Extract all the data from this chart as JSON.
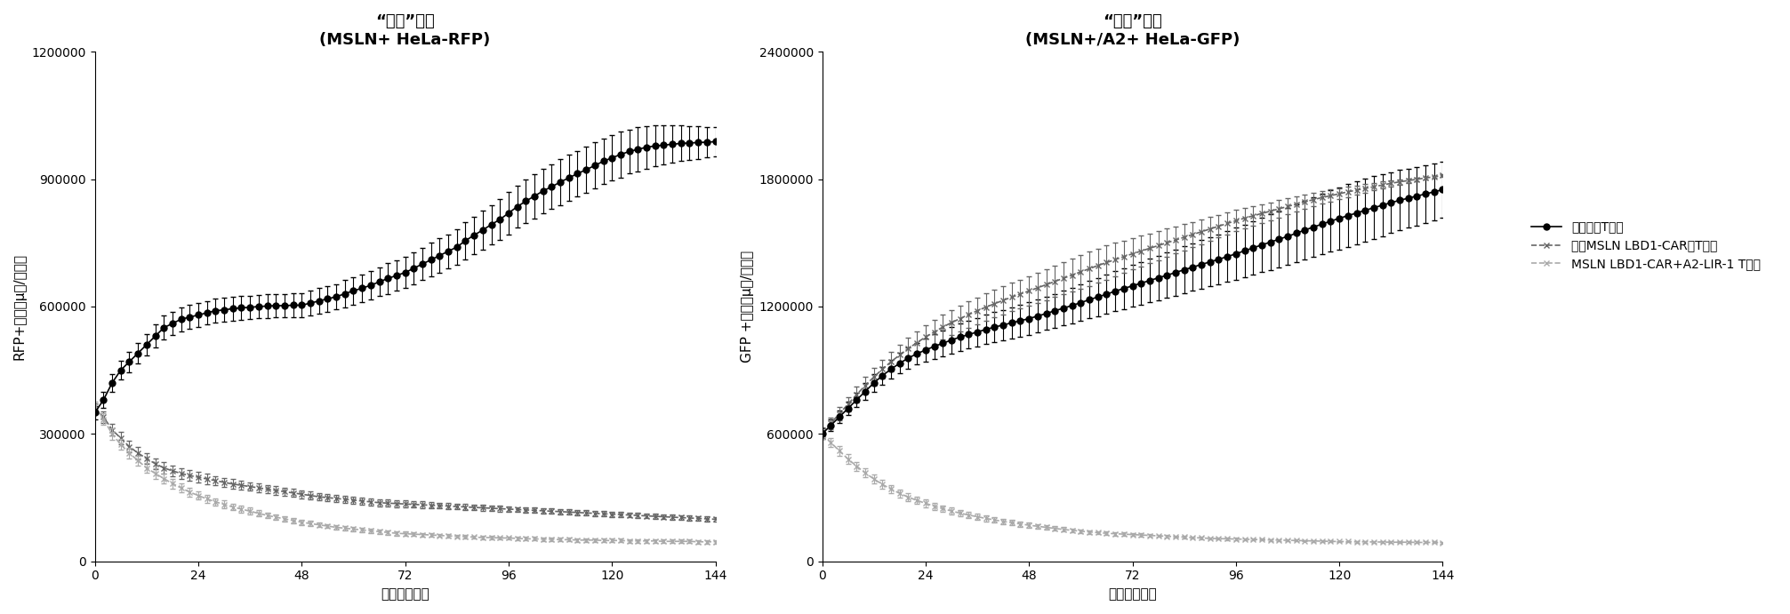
{
  "plot1_title_line1": "“肿瘤”细胞",
  "plot1_title_line2": "(MSLN+ HeLa-RFP)",
  "plot2_title_line1": "“正常”细胞",
  "plot2_title_line2": "(MSLN+/A2+ HeLa-GFP)",
  "plot1_ylabel": "RFP+面积（μ㎡/图像）",
  "plot2_ylabel": "GFP +面积（μ㎡/图像）",
  "xlabel": "时间（小时）",
  "plot1_ylim": [
    0,
    1200000
  ],
  "plot2_ylim": [
    0,
    2400000
  ],
  "xlim": [
    0,
    144
  ],
  "xticks": [
    0,
    24,
    48,
    72,
    96,
    120,
    144
  ],
  "plot1_yticks": [
    0,
    300000,
    600000,
    900000,
    1200000
  ],
  "plot2_yticks": [
    0,
    600000,
    1200000,
    1800000,
    2400000
  ],
  "legend_labels": [
    "未转导的T细胞",
    "仅含MSLN LBD1-CAR的T细胞",
    "MSLN LBD1-CAR+A2-LIR-1 T细胞"
  ],
  "time": [
    0,
    2,
    4,
    6,
    8,
    10,
    12,
    14,
    16,
    18,
    20,
    22,
    24,
    26,
    28,
    30,
    32,
    34,
    36,
    38,
    40,
    42,
    44,
    46,
    48,
    50,
    52,
    54,
    56,
    58,
    60,
    62,
    64,
    66,
    68,
    70,
    72,
    74,
    76,
    78,
    80,
    82,
    84,
    86,
    88,
    90,
    92,
    94,
    96,
    98,
    100,
    102,
    104,
    106,
    108,
    110,
    112,
    114,
    116,
    118,
    120,
    122,
    124,
    126,
    128,
    130,
    132,
    134,
    136,
    138,
    140,
    142,
    144
  ],
  "p1_ctrl": [
    350000,
    380000,
    420000,
    450000,
    470000,
    490000,
    510000,
    530000,
    550000,
    560000,
    570000,
    575000,
    580000,
    585000,
    590000,
    592000,
    595000,
    597000,
    598000,
    600000,
    601000,
    602000,
    602000,
    603000,
    603000,
    608000,
    613000,
    618000,
    623000,
    630000,
    637000,
    643000,
    650000,
    658000,
    666000,
    673000,
    680000,
    690000,
    700000,
    710000,
    720000,
    730000,
    740000,
    755000,
    768000,
    780000,
    793000,
    805000,
    820000,
    835000,
    848000,
    860000,
    872000,
    882000,
    893000,
    903000,
    913000,
    922000,
    932000,
    942000,
    950000,
    958000,
    965000,
    970000,
    975000,
    978000,
    980000,
    982000,
    984000,
    985000,
    986000,
    987000,
    988000
  ],
  "p1_ctrl_err": [
    15000,
    18000,
    20000,
    22000,
    24000,
    25000,
    26000,
    27000,
    28000,
    28000,
    28000,
    28000,
    28000,
    28000,
    28000,
    28000,
    28000,
    28000,
    28000,
    28000,
    28000,
    28000,
    28000,
    28000,
    28000,
    30000,
    30000,
    30000,
    30000,
    32000,
    32000,
    32000,
    34000,
    34000,
    36000,
    36000,
    36000,
    38000,
    38000,
    40000,
    40000,
    40000,
    42000,
    44000,
    44000,
    46000,
    46000,
    48000,
    50000,
    50000,
    52000,
    52000,
    52000,
    52000,
    54000,
    54000,
    54000,
    54000,
    54000,
    54000,
    54000,
    54000,
    52000,
    52000,
    50000,
    48000,
    46000,
    44000,
    42000,
    40000,
    38000,
    36000,
    34000
  ],
  "p1_car": [
    360000,
    340000,
    310000,
    290000,
    270000,
    255000,
    242000,
    230000,
    220000,
    213000,
    207000,
    202000,
    198000,
    194000,
    190000,
    186000,
    182000,
    179000,
    176000,
    173000,
    170000,
    167000,
    164000,
    161000,
    158000,
    155000,
    152000,
    150000,
    148000,
    146000,
    144000,
    142000,
    140000,
    138000,
    137000,
    136000,
    135000,
    134000,
    133000,
    132000,
    131000,
    130000,
    129000,
    128000,
    127000,
    126000,
    125000,
    124000,
    123000,
    122000,
    121000,
    120000,
    119000,
    118000,
    117000,
    116000,
    115000,
    114000,
    113000,
    112000,
    111000,
    110000,
    109000,
    108000,
    107000,
    106000,
    105000,
    104000,
    103000,
    102000,
    101000,
    100000,
    99000
  ],
  "p1_car_err": [
    12000,
    14000,
    14000,
    14000,
    14000,
    14000,
    13000,
    13000,
    13000,
    12000,
    12000,
    12000,
    12000,
    12000,
    11000,
    11000,
    11000,
    11000,
    10000,
    10000,
    10000,
    10000,
    9000,
    9000,
    9000,
    9000,
    9000,
    9000,
    9000,
    8000,
    8000,
    8000,
    8000,
    8000,
    8000,
    8000,
    8000,
    8000,
    8000,
    7000,
    7000,
    7000,
    7000,
    7000,
    7000,
    7000,
    7000,
    7000,
    6000,
    6000,
    6000,
    6000,
    6000,
    6000,
    6000,
    6000,
    6000,
    6000,
    6000,
    6000,
    6000,
    6000,
    6000,
    6000,
    6000,
    6000,
    6000,
    6000,
    6000,
    6000,
    6000,
    6000,
    6000
  ],
  "p1_combo": [
    365000,
    335000,
    300000,
    275000,
    255000,
    237000,
    220000,
    207000,
    195000,
    183000,
    173000,
    163000,
    155000,
    147000,
    140000,
    134000,
    128000,
    123000,
    118000,
    113000,
    108000,
    104000,
    100000,
    96000,
    92000,
    89000,
    86000,
    83000,
    80000,
    78000,
    76000,
    74000,
    72000,
    70000,
    68000,
    66000,
    65000,
    64000,
    63000,
    62000,
    61000,
    60000,
    59000,
    58000,
    57000,
    56000,
    56000,
    55000,
    55000,
    54000,
    53000,
    53000,
    52000,
    52000,
    51000,
    51000,
    50000,
    50000,
    50000,
    49000,
    49000,
    49000,
    48000,
    48000,
    48000,
    48000,
    47000,
    47000,
    47000,
    47000,
    46000,
    46000,
    46000
  ],
  "p1_combo_err": [
    12000,
    13000,
    13000,
    13000,
    13000,
    12000,
    12000,
    12000,
    11000,
    11000,
    10000,
    10000,
    10000,
    9000,
    9000,
    9000,
    8000,
    8000,
    8000,
    7000,
    7000,
    7000,
    7000,
    6000,
    6000,
    6000,
    6000,
    5000,
    5000,
    5000,
    5000,
    5000,
    5000,
    5000,
    5000,
    5000,
    5000,
    4000,
    4000,
    4000,
    4000,
    4000,
    4000,
    4000,
    4000,
    4000,
    4000,
    4000,
    4000,
    4000,
    4000,
    4000,
    4000,
    4000,
    4000,
    4000,
    4000,
    4000,
    4000,
    4000,
    4000,
    4000,
    4000,
    4000,
    4000,
    4000,
    4000,
    4000,
    4000,
    4000,
    4000,
    4000,
    4000
  ],
  "p2_ctrl": [
    600000,
    640000,
    680000,
    720000,
    760000,
    800000,
    840000,
    875000,
    905000,
    933000,
    957000,
    978000,
    995000,
    1012000,
    1027000,
    1042000,
    1056000,
    1068000,
    1080000,
    1092000,
    1103000,
    1113000,
    1123000,
    1133000,
    1143000,
    1155000,
    1167000,
    1180000,
    1192000,
    1205000,
    1218000,
    1232000,
    1245000,
    1258000,
    1272000,
    1285000,
    1297000,
    1310000,
    1322000,
    1335000,
    1347000,
    1360000,
    1373000,
    1385000,
    1398000,
    1410000,
    1422000,
    1435000,
    1448000,
    1462000,
    1476000,
    1490000,
    1503000,
    1517000,
    1530000,
    1545000,
    1560000,
    1574000,
    1588000,
    1602000,
    1615000,
    1628000,
    1640000,
    1653000,
    1665000,
    1677000,
    1689000,
    1700000,
    1710000,
    1720000,
    1730000,
    1740000,
    1750000
  ],
  "p2_ctrl_err": [
    25000,
    28000,
    30000,
    32000,
    35000,
    38000,
    40000,
    42000,
    45000,
    48000,
    50000,
    52000,
    55000,
    58000,
    60000,
    62000,
    64000,
    65000,
    67000,
    68000,
    70000,
    72000,
    73000,
    74000,
    76000,
    77000,
    78000,
    80000,
    82000,
    84000,
    86000,
    88000,
    90000,
    92000,
    94000,
    96000,
    98000,
    100000,
    102000,
    104000,
    106000,
    108000,
    110000,
    112000,
    114000,
    116000,
    118000,
    120000,
    122000,
    124000,
    126000,
    128000,
    130000,
    132000,
    134000,
    136000,
    138000,
    140000,
    142000,
    144000,
    146000,
    148000,
    148000,
    148000,
    148000,
    146000,
    144000,
    142000,
    140000,
    138000,
    136000,
    134000,
    132000
  ],
  "p2_car": [
    605000,
    650000,
    695000,
    740000,
    785000,
    828000,
    868000,
    905000,
    940000,
    972000,
    1002000,
    1030000,
    1056000,
    1080000,
    1103000,
    1124000,
    1143000,
    1162000,
    1180000,
    1197000,
    1213000,
    1229000,
    1244000,
    1259000,
    1273000,
    1288000,
    1303000,
    1318000,
    1333000,
    1348000,
    1363000,
    1378000,
    1393000,
    1407000,
    1421000,
    1435000,
    1448000,
    1461000,
    1474000,
    1487000,
    1500000,
    1513000,
    1526000,
    1539000,
    1552000,
    1565000,
    1578000,
    1591000,
    1604000,
    1616000,
    1627000,
    1638000,
    1649000,
    1660000,
    1671000,
    1682000,
    1693000,
    1703000,
    1713000,
    1722000,
    1731000,
    1740000,
    1748000,
    1756000,
    1764000,
    1772000,
    1780000,
    1787000,
    1793000,
    1799000,
    1805000,
    1811000,
    1817000
  ],
  "p2_car_err": [
    25000,
    28000,
    32000,
    35000,
    38000,
    40000,
    42000,
    44000,
    46000,
    48000,
    50000,
    52000,
    54000,
    55000,
    57000,
    59000,
    60000,
    62000,
    63000,
    64000,
    65000,
    66000,
    67000,
    68000,
    68000,
    70000,
    72000,
    74000,
    76000,
    78000,
    80000,
    80000,
    80000,
    80000,
    78000,
    76000,
    74000,
    72000,
    70000,
    68000,
    66000,
    64000,
    62000,
    60000,
    58000,
    56000,
    54000,
    52000,
    50000,
    48000,
    46000,
    44000,
    42000,
    40000,
    38000,
    36000,
    34000,
    32000,
    30000,
    28000,
    26000,
    24000,
    22000,
    20000,
    18000,
    16000,
    14000,
    12000,
    10000,
    8000,
    6000,
    5000,
    5000
  ],
  "p2_combo": [
    600000,
    560000,
    520000,
    482000,
    448000,
    416000,
    388000,
    362000,
    340000,
    320000,
    302000,
    287000,
    273000,
    260000,
    248000,
    237000,
    227000,
    218000,
    210000,
    202000,
    195000,
    188000,
    182000,
    176000,
    170000,
    165000,
    160000,
    155000,
    150000,
    146000,
    142000,
    138000,
    135000,
    132000,
    130000,
    128000,
    126000,
    124000,
    122000,
    120000,
    118000,
    116000,
    114000,
    112000,
    110000,
    108000,
    107000,
    106000,
    105000,
    104000,
    103000,
    102000,
    101000,
    100000,
    99000,
    98000,
    97000,
    96000,
    95000,
    94000,
    93000,
    93000,
    92000,
    92000,
    91000,
    91000,
    90000,
    90000,
    90000,
    89000,
    89000,
    89000,
    88000
  ],
  "p2_combo_err": [
    22000,
    22000,
    22000,
    22000,
    21000,
    21000,
    20000,
    20000,
    19000,
    19000,
    18000,
    18000,
    17000,
    17000,
    16000,
    16000,
    15000,
    15000,
    14000,
    14000,
    13000,
    13000,
    12000,
    12000,
    11000,
    11000,
    10000,
    10000,
    10000,
    9000,
    9000,
    9000,
    8000,
    8000,
    8000,
    7000,
    7000,
    7000,
    7000,
    6000,
    6000,
    6000,
    6000,
    6000,
    5000,
    5000,
    5000,
    5000,
    5000,
    5000,
    5000,
    4000,
    4000,
    4000,
    4000,
    4000,
    4000,
    4000,
    4000,
    4000,
    4000,
    4000,
    4000,
    4000,
    4000,
    4000,
    4000,
    4000,
    4000,
    4000,
    4000,
    4000,
    4000
  ],
  "ctrl_color": "#000000",
  "car_color": "#555555",
  "combo_color": "#888888",
  "ctrl_marker": "o",
  "car_marker": "x",
  "combo_marker": "x",
  "marker_size": 4,
  "linewidth": 1.2,
  "capsize": 2,
  "elinewidth": 0.8,
  "title_fontsize": 13,
  "label_fontsize": 11,
  "tick_fontsize": 10,
  "legend_fontsize": 10
}
